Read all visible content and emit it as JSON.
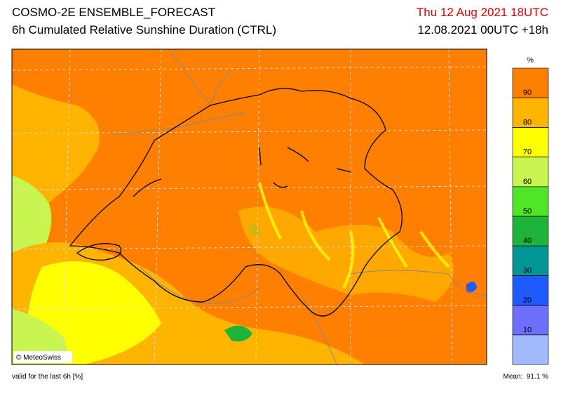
{
  "header": {
    "title": "COSMO-2E ENSEMBLE_FORECAST",
    "subtitle": "6h Cumulated Relative Sunshine Duration (CTRL)",
    "valid_time": "Thu 12 Aug 2021 18UTC",
    "run": "12.08.2021 00UTC +18h"
  },
  "legend": {
    "unit": "%",
    "ticks": [
      90,
      80,
      70,
      60,
      50,
      40,
      30,
      20,
      10
    ],
    "colors": [
      "#ff7f00",
      "#ffb400",
      "#ffff00",
      "#c8f550",
      "#50e628",
      "#1eb43c",
      "#009696",
      "#1e5aff",
      "#6e6eff",
      "#a0b9ff"
    ]
  },
  "map": {
    "credit": "© MeteoSwiss"
  },
  "footer": {
    "note": "valid for the last 6h [%]",
    "mean": "Mean:  91.1 %"
  }
}
